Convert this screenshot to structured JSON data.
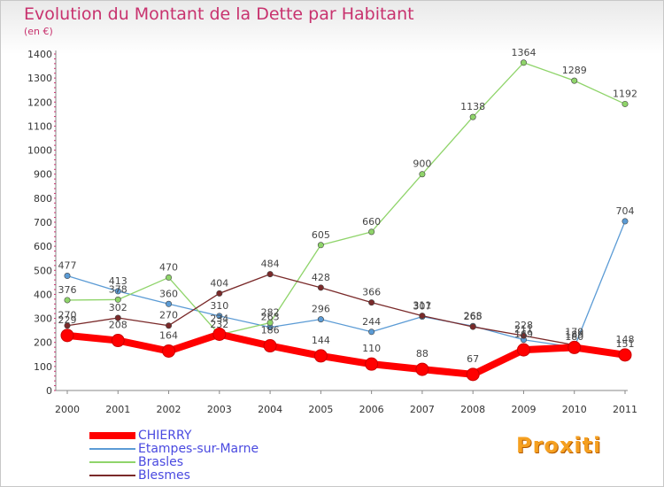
{
  "header": {
    "title": "Evolution du Montant de la Dette par Habitant",
    "unit": "(en €)"
  },
  "logo": {
    "text": "Proxiti"
  },
  "chart_data": {
    "type": "line",
    "title": "Evolution du Montant de la Dette par Habitant",
    "ylabel": "(en €)",
    "xlabel": "",
    "ylim": [
      0,
      1400
    ],
    "yticks": [
      0,
      100,
      200,
      300,
      400,
      500,
      600,
      700,
      800,
      900,
      1000,
      1100,
      1200,
      1300,
      1400
    ],
    "categories": [
      "2000",
      "2001",
      "2002",
      "2003",
      "2004",
      "2005",
      "2006",
      "2007",
      "2008",
      "2009",
      "2010",
      "2011"
    ],
    "grid": false,
    "legend_position": "bottom-left",
    "series": [
      {
        "name": "CHIERRY",
        "color": "#ff0000",
        "values": [
          229,
          208,
          164,
          234,
          186,
          144,
          110,
          88,
          67,
          169,
          179,
          148
        ]
      },
      {
        "name": "Etampes-sur-Marne",
        "color": "#5b9bd5",
        "values": [
          477,
          413,
          360,
          310,
          263,
          296,
          244,
          307,
          268,
          211,
          180,
          704
        ]
      },
      {
        "name": "Brasles",
        "color": "#8fd46a",
        "values": [
          376,
          378,
          470,
          232,
          282,
          605,
          660,
          900,
          1138,
          1364,
          1289,
          1192
        ]
      },
      {
        "name": "Blesmes",
        "color": "#7a2a2a",
        "values": [
          270,
          302,
          270,
          404,
          484,
          428,
          366,
          311,
          265,
          228,
          189,
          151
        ]
      }
    ]
  }
}
